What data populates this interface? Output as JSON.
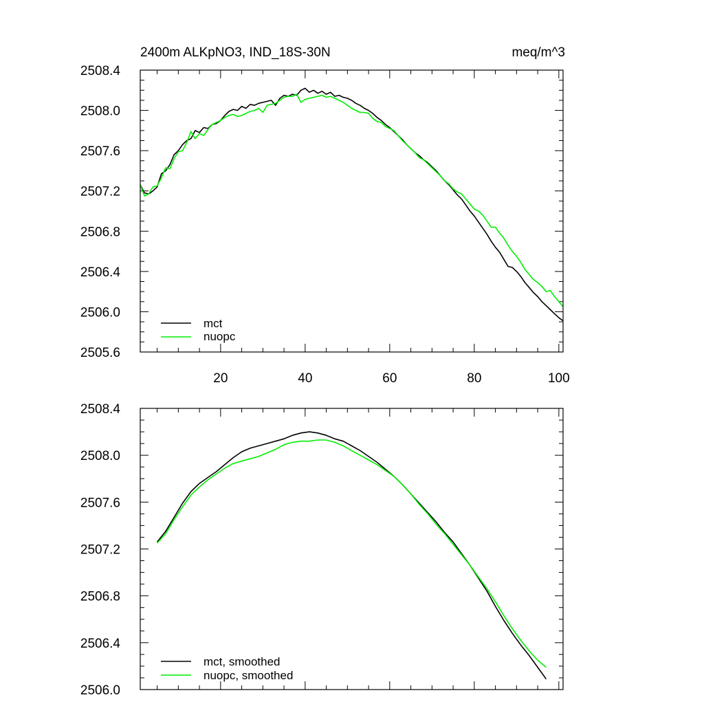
{
  "chart_data": [
    {
      "type": "line",
      "title_left": "2400m ALKpNO3, IND_18S-30N",
      "title_right": "meq/m^3",
      "xlim": [
        1,
        101
      ],
      "ylim": [
        2505.6,
        2508.4
      ],
      "yticks": [
        "2508.4",
        "2508.0",
        "2507.6",
        "2507.2",
        "2506.8",
        "2506.4",
        "2506.0",
        "2505.6"
      ],
      "xticks": [
        "20",
        "40",
        "60",
        "80",
        "100"
      ],
      "legend_position": "bottom-left",
      "series": [
        {
          "name": "mct",
          "color": "#000000",
          "x": [
            1,
            2,
            3,
            4,
            5,
            6,
            7,
            8,
            9,
            10,
            11,
            12,
            13,
            14,
            15,
            16,
            17,
            18,
            19,
            20,
            21,
            22,
            23,
            24,
            25,
            26,
            27,
            28,
            29,
            30,
            31,
            32,
            33,
            34,
            35,
            36,
            37,
            38,
            39,
            40,
            41,
            42,
            43,
            44,
            45,
            46,
            47,
            48,
            49,
            50,
            51,
            52,
            53,
            54,
            55,
            56,
            57,
            58,
            59,
            60,
            61,
            62,
            63,
            64,
            65,
            66,
            67,
            68,
            69,
            70,
            71,
            72,
            73,
            74,
            75,
            76,
            77,
            78,
            79,
            80,
            81,
            82,
            83,
            84,
            85,
            86,
            87,
            88,
            89,
            90,
            91,
            92,
            93,
            94,
            95,
            96,
            97,
            98,
            99,
            100,
            101
          ],
          "values": [
            2507.26,
            2507.18,
            2507.17,
            2507.2,
            2507.24,
            2507.37,
            2507.4,
            2507.46,
            2507.56,
            2507.6,
            2507.66,
            2507.7,
            2507.72,
            2507.8,
            2507.78,
            2507.83,
            2507.82,
            2507.86,
            2507.87,
            2507.9,
            2507.95,
            2507.99,
            2508.01,
            2508.0,
            2508.04,
            2508.02,
            2508.06,
            2508.05,
            2508.07,
            2508.08,
            2508.09,
            2508.1,
            2508.05,
            2508.12,
            2508.15,
            2508.14,
            2508.16,
            2508.15,
            2508.2,
            2508.22,
            2508.18,
            2508.2,
            2508.17,
            2508.19,
            2508.16,
            2508.18,
            2508.14,
            2508.15,
            2508.13,
            2508.12,
            2508.1,
            2508.07,
            2508.05,
            2508.02,
            2508.0,
            2507.97,
            2507.93,
            2507.9,
            2507.86,
            2507.83,
            2507.79,
            2507.75,
            2507.71,
            2507.66,
            2507.62,
            2507.58,
            2507.55,
            2507.51,
            2507.48,
            2507.44,
            2507.4,
            2507.35,
            2507.3,
            2507.26,
            2507.21,
            2507.16,
            2507.12,
            2507.06,
            2507.0,
            2506.95,
            2506.89,
            2506.83,
            2506.77,
            2506.7,
            2506.64,
            2506.59,
            2506.52,
            2506.45,
            2506.44,
            2506.4,
            2506.35,
            2506.29,
            2506.24,
            2506.19,
            2506.15,
            2506.1,
            2506.06,
            2506.02,
            2505.98,
            2505.94,
            2505.91
          ]
        },
        {
          "name": "nuopc",
          "color": "#00ee00",
          "x": [
            1,
            2,
            3,
            4,
            5,
            6,
            7,
            8,
            9,
            10,
            11,
            12,
            13,
            14,
            15,
            16,
            17,
            18,
            19,
            20,
            21,
            22,
            23,
            24,
            25,
            26,
            27,
            28,
            29,
            30,
            31,
            32,
            33,
            34,
            35,
            36,
            37,
            38,
            39,
            40,
            41,
            42,
            43,
            44,
            45,
            46,
            47,
            48,
            49,
            50,
            51,
            52,
            53,
            54,
            55,
            56,
            57,
            58,
            59,
            60,
            61,
            62,
            63,
            64,
            65,
            66,
            67,
            68,
            69,
            70,
            71,
            72,
            73,
            74,
            75,
            76,
            77,
            78,
            79,
            80,
            81,
            82,
            83,
            84,
            85,
            86,
            87,
            88,
            89,
            90,
            91,
            92,
            93,
            94,
            95,
            96,
            97,
            98,
            99,
            100,
            101
          ],
          "values": [
            2507.26,
            2507.15,
            2507.17,
            2507.24,
            2507.25,
            2507.33,
            2507.43,
            2507.42,
            2507.52,
            2507.59,
            2507.6,
            2507.68,
            2507.79,
            2507.72,
            2507.77,
            2507.75,
            2507.81,
            2507.86,
            2507.88,
            2507.9,
            2507.93,
            2507.95,
            2507.96,
            2507.94,
            2507.95,
            2507.97,
            2507.99,
            2508.0,
            2508.02,
            2507.98,
            2508.05,
            2508.06,
            2508.07,
            2508.1,
            2508.13,
            2508.14,
            2508.14,
            2508.16,
            2508.08,
            2508.11,
            2508.12,
            2508.13,
            2508.14,
            2508.15,
            2508.13,
            2508.14,
            2508.12,
            2508.1,
            2508.08,
            2508.05,
            2508.02,
            2508.0,
            2507.98,
            2507.98,
            2507.97,
            2507.92,
            2507.89,
            2507.88,
            2507.84,
            2507.82,
            2507.8,
            2507.75,
            2507.7,
            2507.66,
            2507.62,
            2507.58,
            2507.53,
            2507.51,
            2507.47,
            2507.43,
            2507.39,
            2507.35,
            2507.3,
            2507.27,
            2507.22,
            2507.19,
            2507.17,
            2507.12,
            2507.07,
            2507.02,
            2507.0,
            2506.96,
            2506.9,
            2506.84,
            2506.84,
            2506.78,
            2506.73,
            2506.66,
            2506.6,
            2506.55,
            2506.49,
            2506.42,
            2506.37,
            2506.32,
            2506.29,
            2506.25,
            2506.2,
            2506.21,
            2506.15,
            2506.1,
            2506.05
          ]
        }
      ]
    },
    {
      "type": "line",
      "xlim": [
        1,
        101
      ],
      "ylim": [
        2506.0,
        2508.4
      ],
      "yticks": [
        "2508.4",
        "2508.0",
        "2507.6",
        "2507.2",
        "2506.8",
        "2506.4",
        "2506.0"
      ],
      "legend_position": "bottom-left",
      "series": [
        {
          "name": "mct, smoothed",
          "color": "#000000",
          "x": [
            5,
            7,
            9,
            11,
            13,
            15,
            17,
            19,
            21,
            23,
            25,
            27,
            29,
            31,
            33,
            35,
            37,
            39,
            41,
            43,
            45,
            47,
            49,
            51,
            53,
            55,
            57,
            59,
            61,
            63,
            65,
            67,
            69,
            71,
            73,
            75,
            77,
            79,
            81,
            83,
            85,
            87,
            89,
            91,
            93,
            95,
            97
          ],
          "values": [
            2507.26,
            2507.35,
            2507.47,
            2507.59,
            2507.69,
            2507.76,
            2507.81,
            2507.86,
            2507.92,
            2507.98,
            2508.03,
            2508.06,
            2508.08,
            2508.1,
            2508.12,
            2508.14,
            2508.17,
            2508.19,
            2508.2,
            2508.19,
            2508.17,
            2508.14,
            2508.12,
            2508.08,
            2508.04,
            2507.99,
            2507.94,
            2507.88,
            2507.82,
            2507.75,
            2507.67,
            2507.59,
            2507.51,
            2507.43,
            2507.34,
            2507.26,
            2507.16,
            2507.06,
            2506.95,
            2506.84,
            2506.71,
            2506.59,
            2506.48,
            2506.38,
            2506.29,
            2506.19,
            2506.09
          ]
        },
        {
          "name": "nuopc, smoothed",
          "color": "#00ee00",
          "x": [
            5,
            7,
            9,
            11,
            13,
            15,
            17,
            19,
            21,
            23,
            25,
            27,
            29,
            31,
            33,
            35,
            37,
            39,
            41,
            43,
            45,
            47,
            49,
            51,
            53,
            55,
            57,
            59,
            61,
            63,
            65,
            67,
            69,
            71,
            73,
            75,
            77,
            79,
            81,
            83,
            85,
            87,
            89,
            91,
            93,
            95,
            97
          ],
          "values": [
            2507.25,
            2507.33,
            2507.45,
            2507.56,
            2507.66,
            2507.73,
            2507.79,
            2507.84,
            2507.89,
            2507.93,
            2507.95,
            2507.97,
            2507.99,
            2508.02,
            2508.05,
            2508.09,
            2508.11,
            2508.12,
            2508.12,
            2508.13,
            2508.13,
            2508.11,
            2508.08,
            2508.04,
            2508.0,
            2507.96,
            2507.92,
            2507.87,
            2507.82,
            2507.75,
            2507.67,
            2507.58,
            2507.5,
            2507.41,
            2507.33,
            2507.24,
            2507.15,
            2507.06,
            2506.96,
            2506.86,
            2506.75,
            2506.63,
            2506.52,
            2506.42,
            2506.33,
            2506.25,
            2506.19
          ]
        }
      ]
    }
  ]
}
